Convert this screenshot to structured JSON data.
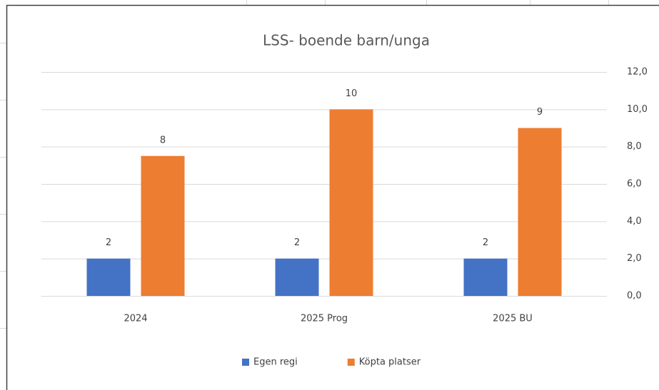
{
  "chart_data": {
    "type": "bar",
    "title": "LSS- boende barn/unga",
    "categories": [
      "2024",
      "2025 Prog",
      "2025 BU"
    ],
    "series": [
      {
        "name": "Egen regi",
        "color": "#4472c4",
        "values": [
          2,
          2,
          2
        ]
      },
      {
        "name": "Köpta platser",
        "color": "#ed7d31",
        "values": [
          7.5,
          10,
          9
        ],
        "value_labels": [
          "8",
          "10",
          "9"
        ]
      }
    ],
    "ylim": [
      0,
      12
    ],
    "yticks": [
      {
        "value": 0,
        "label": "0,0"
      },
      {
        "value": 2,
        "label": "2,0"
      },
      {
        "value": 4,
        "label": "4,0"
      },
      {
        "value": 6,
        "label": "6,0"
      },
      {
        "value": 8,
        "label": "8,0"
      },
      {
        "value": 10,
        "label": "10,0"
      },
      {
        "value": 12,
        "label": "12,0"
      }
    ],
    "y_axis_side": "right",
    "grid": true,
    "legend": "bottom"
  }
}
